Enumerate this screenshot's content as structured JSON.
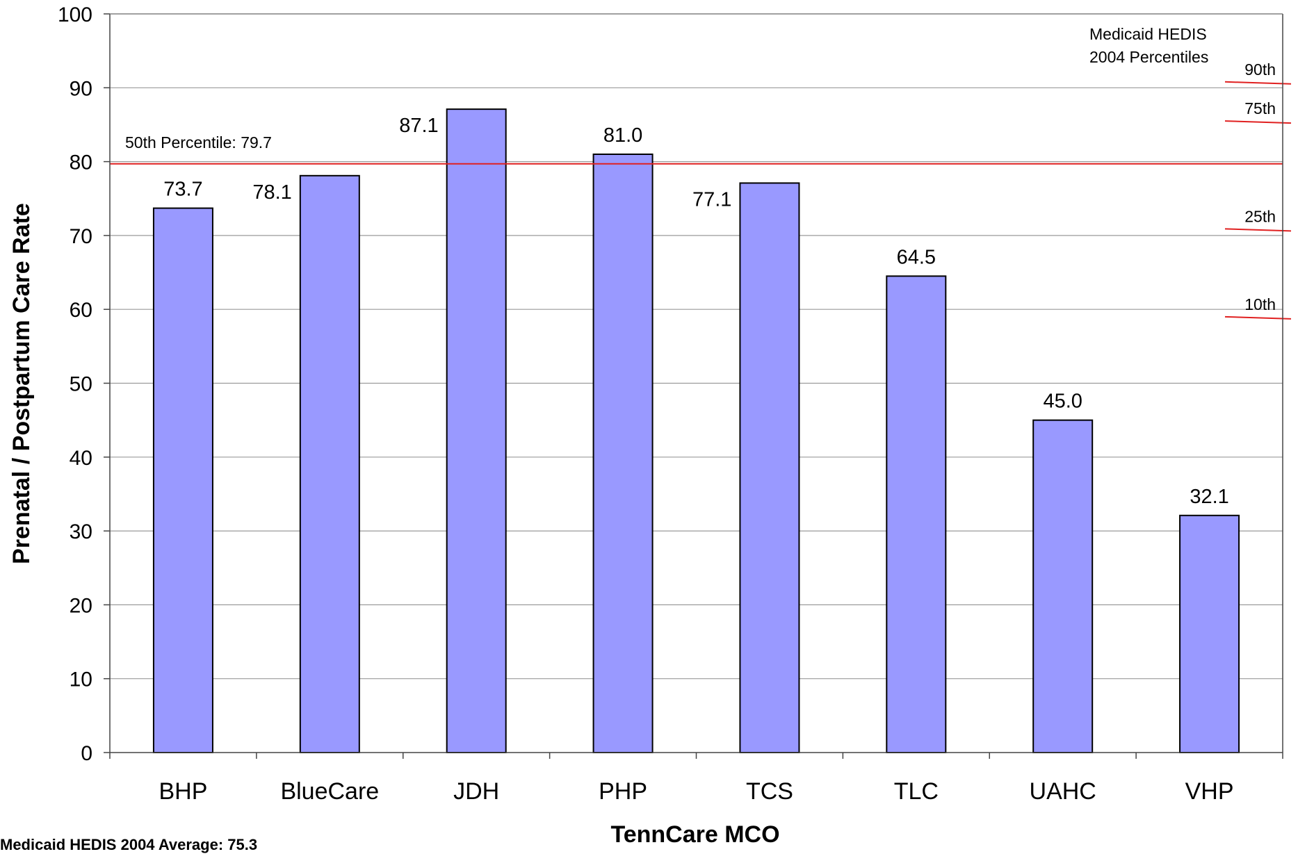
{
  "chart_data": {
    "type": "bar",
    "categories": [
      "BHP",
      "BlueCare",
      "JDH",
      "PHP",
      "TCS",
      "TLC",
      "UAHC",
      "VHP"
    ],
    "values": [
      73.7,
      78.1,
      87.1,
      81.0,
      77.1,
      64.5,
      45.0,
      32.1
    ],
    "value_labels": [
      "73.7",
      "78.1",
      "87.1",
      "81.0",
      "77.1",
      "64.5",
      "45.0",
      "32.1"
    ],
    "xlabel": "TennCare MCO",
    "ylabel": "Prenatal / Postpartum Care Rate",
    "ylim": [
      0,
      100
    ],
    "yticks": [
      0,
      10,
      20,
      30,
      40,
      50,
      60,
      70,
      80,
      90,
      100
    ],
    "grid": true,
    "bar_color": "#9999ff",
    "reference_color": "#e02020",
    "reference_line": {
      "value": 79.7,
      "label": "50th Percentile: 79.7"
    },
    "legend_box": {
      "line1": "Medicaid HEDIS",
      "line2": "2004 Percentiles",
      "placement": "top-right"
    },
    "percentiles": [
      {
        "label": "90th",
        "value": 90.8
      },
      {
        "label": "75th",
        "value": 85.5
      },
      {
        "label": "25th",
        "value": 70.9
      },
      {
        "label": "10th",
        "value": 59.0
      }
    ],
    "footnote": "Medicaid HEDIS 2004 Average: 75.3"
  }
}
